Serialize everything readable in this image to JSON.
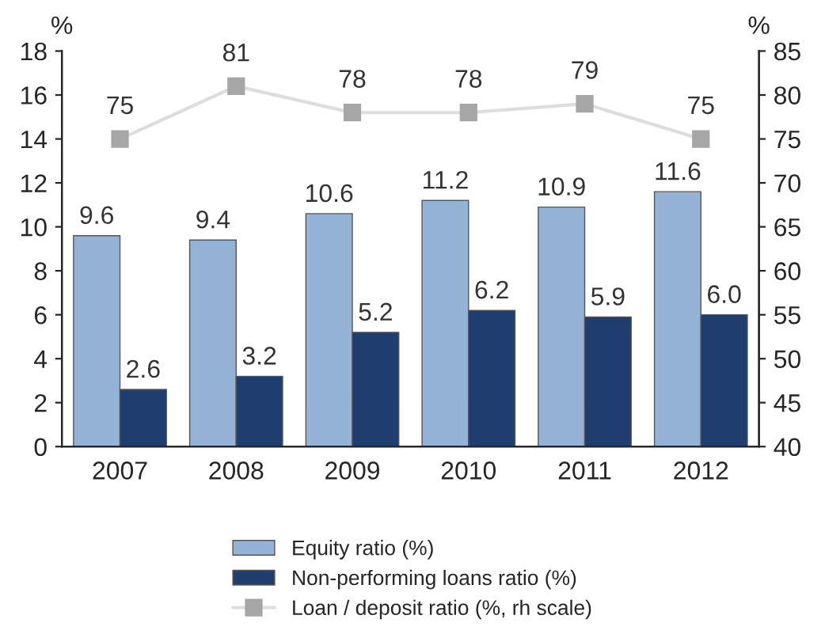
{
  "chart_data": {
    "type": "bar",
    "ylabel": "%",
    "y2label": "%",
    "categories": [
      "2007",
      "2008",
      "2009",
      "2010",
      "2011",
      "2012"
    ],
    "series": [
      {
        "name": "Equity ratio (%)",
        "color": "#95b3d7",
        "values": [
          9.6,
          9.4,
          10.6,
          11.2,
          10.9,
          11.6
        ]
      },
      {
        "name": "Non-performing loans ratio (%)",
        "color": "#1f3d6e",
        "values": [
          2.6,
          3.2,
          5.2,
          6.2,
          5.9,
          6.0
        ],
        "value_labels": [
          "2.6",
          "3.2",
          "5.2",
          "6.2",
          "5.9",
          "6.0"
        ]
      },
      {
        "name": "Loan / deposit ratio (%, rh scale)",
        "type": "line",
        "axis": "y2",
        "color": "#a6a6a6",
        "marker": "square",
        "values": [
          75,
          81,
          78,
          78,
          79,
          75
        ]
      }
    ],
    "ylim": [
      0,
      18
    ],
    "yticks": [
      0,
      2,
      4,
      6,
      8,
      10,
      12,
      14,
      16,
      18
    ],
    "y2lim": [
      40,
      85
    ],
    "y2ticks": [
      40,
      45,
      50,
      55,
      60,
      65,
      70,
      75,
      80,
      85
    ],
    "data_labels": true,
    "legend": "bottom",
    "grid": false
  }
}
